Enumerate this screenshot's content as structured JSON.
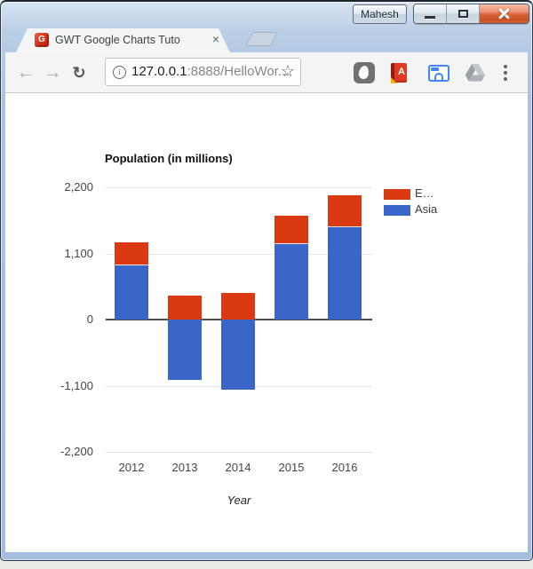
{
  "window": {
    "profile_label": "Mahesh",
    "controls": {
      "minimize": "minimize",
      "maximize": "maximize",
      "close": "close"
    }
  },
  "tab": {
    "title": "GWT Google Charts Tuto",
    "favicon_letter": "G",
    "close_glyph": "×"
  },
  "toolbar": {
    "url_host": "127.0.0.1",
    "url_rest": ":8888/HelloWor...",
    "book_letter": "A",
    "icons": {
      "back": "←",
      "forward": "→",
      "reload": "↻",
      "star": "☆",
      "info": "i"
    }
  },
  "chart_data": {
    "type": "bar",
    "stacked": true,
    "title": "Population (in millions)",
    "xlabel": "Year",
    "ylabel": "",
    "categories": [
      "2012",
      "2013",
      "2014",
      "2015",
      "2016"
    ],
    "series": [
      {
        "name": "Asia",
        "color": "#3b66c9",
        "values": [
          900,
          -1000,
          -1170,
          1250,
          1530
        ]
      },
      {
        "name": "E…",
        "color": "#db3912",
        "values": [
          390,
          400,
          440,
          480,
          540
        ]
      }
    ],
    "legend": [
      {
        "label": "E…",
        "color": "#db3912"
      },
      {
        "label": "Asia",
        "color": "#3b66c9"
      }
    ],
    "legend_position": "right",
    "grid": true,
    "ylim": [
      -2200,
      2200
    ],
    "yticks": [
      2200,
      1100,
      0,
      -1100,
      -2200
    ],
    "ytick_labels": [
      "2,200",
      "1,100",
      "0",
      "-1,100",
      "-2,200"
    ]
  }
}
